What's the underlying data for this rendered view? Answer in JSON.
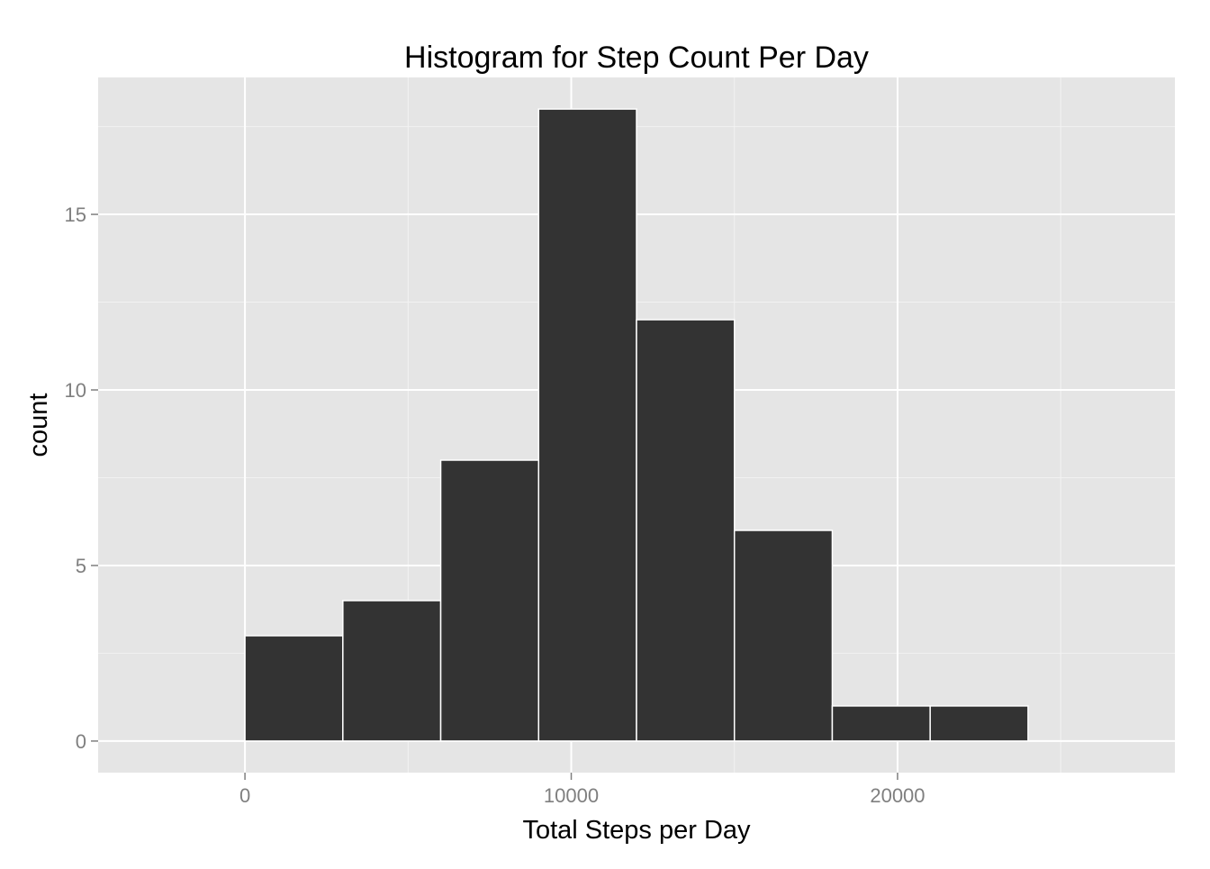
{
  "chart_data": {
    "type": "bar",
    "title": "Histogram for Step Count Per Day",
    "xlabel": "Total Steps per Day",
    "ylabel": "count",
    "bin_width": 3000,
    "bins": [
      {
        "start": 0,
        "end": 3000,
        "count": 3
      },
      {
        "start": 3000,
        "end": 6000,
        "count": 4
      },
      {
        "start": 6000,
        "end": 9000,
        "count": 8
      },
      {
        "start": 9000,
        "end": 12000,
        "count": 18
      },
      {
        "start": 12000,
        "end": 15000,
        "count": 12
      },
      {
        "start": 15000,
        "end": 18000,
        "count": 6
      },
      {
        "start": 18000,
        "end": 21000,
        "count": 1
      },
      {
        "start": 21000,
        "end": 24000,
        "count": 1
      }
    ],
    "xlim": [
      -4500,
      28500
    ],
    "ylim": [
      -0.9,
      18.9
    ],
    "x_ticks": [
      {
        "value": 0,
        "label": "0"
      },
      {
        "value": 10000,
        "label": "10000"
      },
      {
        "value": 20000,
        "label": "20000"
      }
    ],
    "x_minor_ticks": [
      5000,
      15000,
      25000
    ],
    "y_ticks": [
      {
        "value": 0,
        "label": "0"
      },
      {
        "value": 5,
        "label": "5"
      },
      {
        "value": 10,
        "label": "10"
      },
      {
        "value": 15,
        "label": "15"
      }
    ],
    "y_minor_ticks": [
      2.5,
      7.5,
      12.5,
      17.5
    ],
    "grid": true,
    "colors": {
      "panel": "#e5e5e5",
      "grid_major": "#ffffff",
      "grid_minor": "#f2f2f2",
      "bar_fill": "#333333",
      "bar_outline": "#ffffff",
      "tick": "#7f7f7f"
    }
  }
}
